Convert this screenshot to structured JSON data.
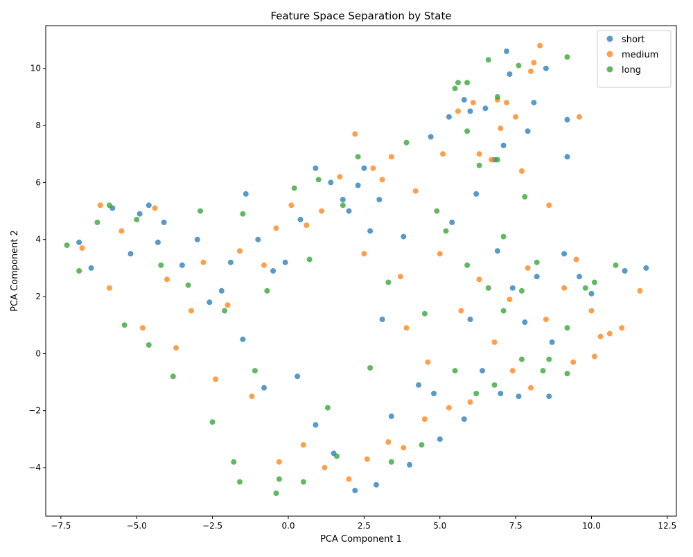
{
  "chart_data": {
    "type": "scatter",
    "title": "Feature Space Separation by State",
    "xlabel": "PCA Component 1",
    "ylabel": "PCA Component 2",
    "xlim": [
      -8.0,
      12.8
    ],
    "ylim": [
      -5.7,
      11.5
    ],
    "xticks": [
      -7.5,
      -5.0,
      -2.5,
      0.0,
      2.5,
      5.0,
      7.5,
      10.0,
      12.5
    ],
    "xtick_labels": [
      "−7.5",
      "−5.0",
      "−2.5",
      "0.0",
      "2.5",
      "5.0",
      "7.5",
      "10.0",
      "12.5"
    ],
    "yticks": [
      -4,
      -2,
      0,
      2,
      4,
      6,
      8,
      10
    ],
    "ytick_labels": [
      "−4",
      "−2",
      "0",
      "2",
      "4",
      "6",
      "8",
      "10"
    ],
    "grid": false,
    "legend_position": "top-right",
    "series": [
      {
        "name": "short",
        "color": "#1f77b4",
        "points": [
          [
            -6.9,
            3.9
          ],
          [
            -6.5,
            3.0
          ],
          [
            -5.8,
            5.1
          ],
          [
            -5.2,
            3.5
          ],
          [
            -4.9,
            4.9
          ],
          [
            -4.6,
            5.2
          ],
          [
            -4.3,
            3.9
          ],
          [
            -4.1,
            4.6
          ],
          [
            -3.5,
            3.1
          ],
          [
            -3.0,
            4.0
          ],
          [
            -2.6,
            1.8
          ],
          [
            -2.2,
            2.2
          ],
          [
            -1.9,
            3.2
          ],
          [
            -1.4,
            5.6
          ],
          [
            -1.0,
            4.0
          ],
          [
            -0.5,
            2.9
          ],
          [
            -0.1,
            3.2
          ],
          [
            0.4,
            4.7
          ],
          [
            0.9,
            6.5
          ],
          [
            1.4,
            6.0
          ],
          [
            1.8,
            5.4
          ],
          [
            2.0,
            5.0
          ],
          [
            2.3,
            5.9
          ],
          [
            2.5,
            6.5
          ],
          [
            2.7,
            4.3
          ],
          [
            3.0,
            5.4
          ],
          [
            3.8,
            4.1
          ],
          [
            -1.5,
            0.5
          ],
          [
            -0.8,
            -1.2
          ],
          [
            0.3,
            -0.8
          ],
          [
            0.9,
            -2.5
          ],
          [
            1.5,
            -3.5
          ],
          [
            2.2,
            -4.8
          ],
          [
            2.9,
            -4.6
          ],
          [
            3.4,
            -2.2
          ],
          [
            4.0,
            -3.9
          ],
          [
            4.7,
            7.6
          ],
          [
            5.3,
            8.3
          ],
          [
            5.8,
            8.9
          ],
          [
            6.0,
            8.5
          ],
          [
            6.5,
            8.6
          ],
          [
            6.8,
            6.8
          ],
          [
            7.1,
            7.3
          ],
          [
            7.2,
            10.6
          ],
          [
            7.3,
            9.8
          ],
          [
            7.9,
            7.8
          ],
          [
            8.1,
            8.8
          ],
          [
            8.5,
            10.0
          ],
          [
            9.2,
            8.2
          ],
          [
            9.2,
            6.9
          ],
          [
            5.4,
            4.6
          ],
          [
            6.2,
            5.6
          ],
          [
            6.9,
            3.6
          ],
          [
            7.4,
            2.3
          ],
          [
            7.8,
            1.1
          ],
          [
            8.2,
            2.7
          ],
          [
            8.7,
            0.4
          ],
          [
            9.1,
            3.5
          ],
          [
            9.6,
            2.7
          ],
          [
            10.0,
            2.1
          ],
          [
            11.1,
            2.9
          ],
          [
            11.8,
            3.0
          ],
          [
            6.4,
            -0.6
          ],
          [
            7.0,
            -1.4
          ],
          [
            7.6,
            -1.5
          ],
          [
            8.6,
            -1.5
          ],
          [
            5.8,
            -2.3
          ],
          [
            5.0,
            -3.0
          ],
          [
            4.3,
            -1.1
          ],
          [
            6.0,
            1.2
          ],
          [
            4.8,
            -1.4
          ],
          [
            3.1,
            1.2
          ]
        ]
      },
      {
        "name": "medium",
        "color": "#ff7f0e",
        "points": [
          [
            -6.8,
            3.7
          ],
          [
            -6.2,
            5.2
          ],
          [
            -5.9,
            2.3
          ],
          [
            -5.5,
            4.3
          ],
          [
            -4.8,
            0.9
          ],
          [
            -4.4,
            5.1
          ],
          [
            -4.0,
            2.6
          ],
          [
            -3.7,
            0.2
          ],
          [
            -3.2,
            1.5
          ],
          [
            -2.8,
            3.2
          ],
          [
            -2.4,
            -0.9
          ],
          [
            -2.0,
            1.7
          ],
          [
            -1.6,
            3.6
          ],
          [
            -1.2,
            -1.5
          ],
          [
            -0.8,
            3.1
          ],
          [
            -0.4,
            4.4
          ],
          [
            0.1,
            5.2
          ],
          [
            0.6,
            4.5
          ],
          [
            1.1,
            5.0
          ],
          [
            1.7,
            6.2
          ],
          [
            2.2,
            7.7
          ],
          [
            2.5,
            3.5
          ],
          [
            2.8,
            6.5
          ],
          [
            3.1,
            6.1
          ],
          [
            3.4,
            6.9
          ],
          [
            3.7,
            2.7
          ],
          [
            4.2,
            5.7
          ],
          [
            -0.3,
            -3.8
          ],
          [
            0.5,
            -3.2
          ],
          [
            1.2,
            -4.0
          ],
          [
            2.0,
            -4.4
          ],
          [
            2.6,
            -3.7
          ],
          [
            3.3,
            -3.1
          ],
          [
            3.8,
            -3.3
          ],
          [
            4.5,
            -2.3
          ],
          [
            5.1,
            7.0
          ],
          [
            5.6,
            8.5
          ],
          [
            6.1,
            8.8
          ],
          [
            6.3,
            7.0
          ],
          [
            6.7,
            6.8
          ],
          [
            6.9,
            8.9
          ],
          [
            7.0,
            7.9
          ],
          [
            7.2,
            8.8
          ],
          [
            7.5,
            8.3
          ],
          [
            7.7,
            6.4
          ],
          [
            8.0,
            9.9
          ],
          [
            8.1,
            10.2
          ],
          [
            8.3,
            10.8
          ],
          [
            8.6,
            5.2
          ],
          [
            9.6,
            8.3
          ],
          [
            5.0,
            3.5
          ],
          [
            5.7,
            1.5
          ],
          [
            6.3,
            2.6
          ],
          [
            6.8,
            0.4
          ],
          [
            7.3,
            1.9
          ],
          [
            7.9,
            3.0
          ],
          [
            8.5,
            1.2
          ],
          [
            9.1,
            2.3
          ],
          [
            9.5,
            3.3
          ],
          [
            10.0,
            1.5
          ],
          [
            10.3,
            0.6
          ],
          [
            10.6,
            0.7
          ],
          [
            11.0,
            0.9
          ],
          [
            11.6,
            2.2
          ],
          [
            10.1,
            -0.1
          ],
          [
            9.4,
            -0.3
          ],
          [
            8.0,
            -1.2
          ],
          [
            7.4,
            -0.6
          ],
          [
            6.0,
            -1.7
          ],
          [
            5.3,
            -1.9
          ],
          [
            4.6,
            -0.3
          ],
          [
            3.9,
            0.9
          ]
        ]
      },
      {
        "name": "long",
        "color": "#2ca02c",
        "points": [
          [
            -7.3,
            3.8
          ],
          [
            -6.9,
            2.9
          ],
          [
            -6.3,
            4.6
          ],
          [
            -5.9,
            5.2
          ],
          [
            -5.4,
            1.0
          ],
          [
            -5.0,
            4.7
          ],
          [
            -4.6,
            0.3
          ],
          [
            -4.2,
            3.1
          ],
          [
            -3.8,
            -0.8
          ],
          [
            -3.3,
            2.4
          ],
          [
            -2.9,
            5.0
          ],
          [
            -2.5,
            -2.4
          ],
          [
            -2.1,
            1.5
          ],
          [
            -1.8,
            -3.8
          ],
          [
            -1.5,
            4.9
          ],
          [
            -1.1,
            -0.6
          ],
          [
            -0.7,
            2.2
          ],
          [
            -0.3,
            -4.4
          ],
          [
            0.2,
            5.8
          ],
          [
            0.7,
            3.3
          ],
          [
            1.0,
            6.1
          ],
          [
            1.3,
            -1.9
          ],
          [
            1.8,
            5.2
          ],
          [
            2.3,
            6.9
          ],
          [
            2.7,
            -0.5
          ],
          [
            3.3,
            2.5
          ],
          [
            3.9,
            7.4
          ],
          [
            -1.6,
            -4.5
          ],
          [
            -0.4,
            -4.9
          ],
          [
            0.5,
            -4.5
          ],
          [
            1.6,
            -3.6
          ],
          [
            3.4,
            -3.8
          ],
          [
            4.4,
            -3.2
          ],
          [
            5.5,
            9.3
          ],
          [
            5.6,
            9.5
          ],
          [
            5.9,
            9.5
          ],
          [
            6.6,
            10.3
          ],
          [
            7.6,
            10.1
          ],
          [
            9.2,
            10.4
          ],
          [
            6.9,
            9.0
          ],
          [
            5.9,
            7.8
          ],
          [
            6.3,
            6.6
          ],
          [
            6.9,
            6.8
          ],
          [
            7.8,
            5.5
          ],
          [
            5.2,
            4.3
          ],
          [
            5.9,
            3.1
          ],
          [
            6.6,
            2.3
          ],
          [
            7.1,
            1.5
          ],
          [
            7.7,
            2.2
          ],
          [
            8.2,
            3.2
          ],
          [
            8.6,
            -0.2
          ],
          [
            9.2,
            0.9
          ],
          [
            9.8,
            2.3
          ],
          [
            10.1,
            2.5
          ],
          [
            10.8,
            3.1
          ],
          [
            9.2,
            -0.7
          ],
          [
            8.4,
            -0.6
          ],
          [
            7.7,
            -0.2
          ],
          [
            6.8,
            -1.1
          ],
          [
            6.2,
            -1.4
          ],
          [
            5.5,
            -0.6
          ],
          [
            4.5,
            1.4
          ],
          [
            4.9,
            5.0
          ],
          [
            7.1,
            4.1
          ]
        ]
      }
    ]
  }
}
